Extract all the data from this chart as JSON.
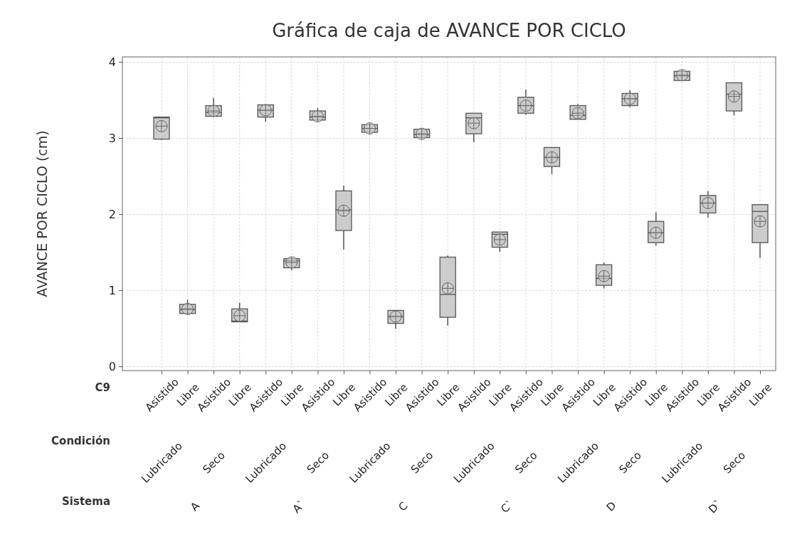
{
  "chart_data": {
    "type": "box",
    "title": "Gráfica de caja de AVANCE POR CICLO",
    "ylabel": "AVANCE POR CICLO (cm)",
    "categories": [
      "Asistido",
      "Libre",
      "Asistido",
      "Libre",
      "Asistido",
      "Libre",
      "Asistido",
      "Libre",
      "Asistido",
      "Libre",
      "Asistido",
      "Libre",
      "Asistido",
      "Libre",
      "Asistido",
      "Libre",
      "Asistido",
      "Libre",
      "Asistido",
      "Libre",
      "Asistido",
      "Libre",
      "Asistido",
      "Libre"
    ],
    "boxes": [
      {
        "low": 2.98,
        "q1": 2.99,
        "median": 3.27,
        "q3": 3.28,
        "high": 3.28,
        "mean": 3.16
      },
      {
        "low": 0.69,
        "q1": 0.7,
        "median": 0.75,
        "q3": 0.82,
        "high": 0.88,
        "mean": 0.76
      },
      {
        "low": 3.28,
        "q1": 3.29,
        "median": 3.34,
        "q3": 3.43,
        "high": 3.53,
        "mean": 3.36
      },
      {
        "low": 0.59,
        "q1": 0.59,
        "median": 0.6,
        "q3": 0.76,
        "high": 0.84,
        "mean": 0.67
      },
      {
        "low": 3.22,
        "q1": 3.28,
        "median": 3.37,
        "q3": 3.44,
        "high": 3.44,
        "mean": 3.37
      },
      {
        "low": 1.27,
        "q1": 1.3,
        "median": 1.39,
        "q3": 1.42,
        "high": 1.42,
        "mean": 1.37
      },
      {
        "low": 3.24,
        "q1": 3.24,
        "median": 3.28,
        "q3": 3.36,
        "high": 3.4,
        "mean": 3.29
      },
      {
        "low": 1.54,
        "q1": 1.79,
        "median": 2.06,
        "q3": 2.31,
        "high": 2.38,
        "mean": 2.05
      },
      {
        "low": 3.08,
        "q1": 3.08,
        "median": 3.13,
        "q3": 3.18,
        "high": 3.18,
        "mean": 3.13
      },
      {
        "low": 0.5,
        "q1": 0.57,
        "median": 0.66,
        "q3": 0.74,
        "high": 0.74,
        "mean": 0.66
      },
      {
        "low": 3.01,
        "q1": 3.01,
        "median": 3.05,
        "q3": 3.12,
        "high": 3.12,
        "mean": 3.06
      },
      {
        "low": 0.54,
        "q1": 0.65,
        "median": 0.95,
        "q3": 1.44,
        "high": 1.46,
        "mean": 1.03
      },
      {
        "low": 2.95,
        "q1": 3.06,
        "median": 3.27,
        "q3": 3.33,
        "high": 3.33,
        "mean": 3.2
      },
      {
        "low": 1.51,
        "q1": 1.57,
        "median": 1.74,
        "q3": 1.77,
        "high": 1.77,
        "mean": 1.67
      },
      {
        "low": 3.31,
        "q1": 3.33,
        "median": 3.43,
        "q3": 3.54,
        "high": 3.64,
        "mean": 3.43
      },
      {
        "low": 2.53,
        "q1": 2.63,
        "median": 2.75,
        "q3": 2.88,
        "high": 2.88,
        "mean": 2.75
      },
      {
        "low": 3.25,
        "q1": 3.25,
        "median": 3.3,
        "q3": 3.43,
        "high": 3.45,
        "mean": 3.33
      },
      {
        "low": 1.03,
        "q1": 1.07,
        "median": 1.16,
        "q3": 1.34,
        "high": 1.37,
        "mean": 1.19
      },
      {
        "low": 3.41,
        "q1": 3.43,
        "median": 3.52,
        "q3": 3.59,
        "high": 3.63,
        "mean": 3.52
      },
      {
        "low": 1.59,
        "q1": 1.63,
        "median": 1.76,
        "q3": 1.91,
        "high": 2.03,
        "mean": 1.76
      },
      {
        "low": 3.76,
        "q1": 3.76,
        "median": 3.82,
        "q3": 3.88,
        "high": 3.88,
        "mean": 3.83
      },
      {
        "low": 1.96,
        "q1": 2.02,
        "median": 2.15,
        "q3": 2.25,
        "high": 2.31,
        "mean": 2.15
      },
      {
        "low": 3.3,
        "q1": 3.36,
        "median": 3.58,
        "q3": 3.73,
        "high": 3.73,
        "mean": 3.55
      },
      {
        "low": 1.43,
        "q1": 1.63,
        "median": 2.04,
        "q3": 2.13,
        "high": 2.13,
        "mean": 1.91
      }
    ],
    "annotations": [
      "C9",
      "Condición",
      "Sistema",
      "Lubricado",
      "Seco",
      "Lubricado",
      "Seco",
      "Lubricado",
      "Seco",
      "Lubricado",
      "Seco",
      "Lubricado",
      "Seco",
      "Lubricado",
      "Seco",
      "A",
      "A`",
      "C",
      "C`",
      "D",
      "D`"
    ],
    "color": "#cccccc",
    "ylim": [
      -0.05,
      4.07
    ],
    "yticks": [
      0,
      1,
      2,
      3,
      4
    ],
    "grid": true
  }
}
